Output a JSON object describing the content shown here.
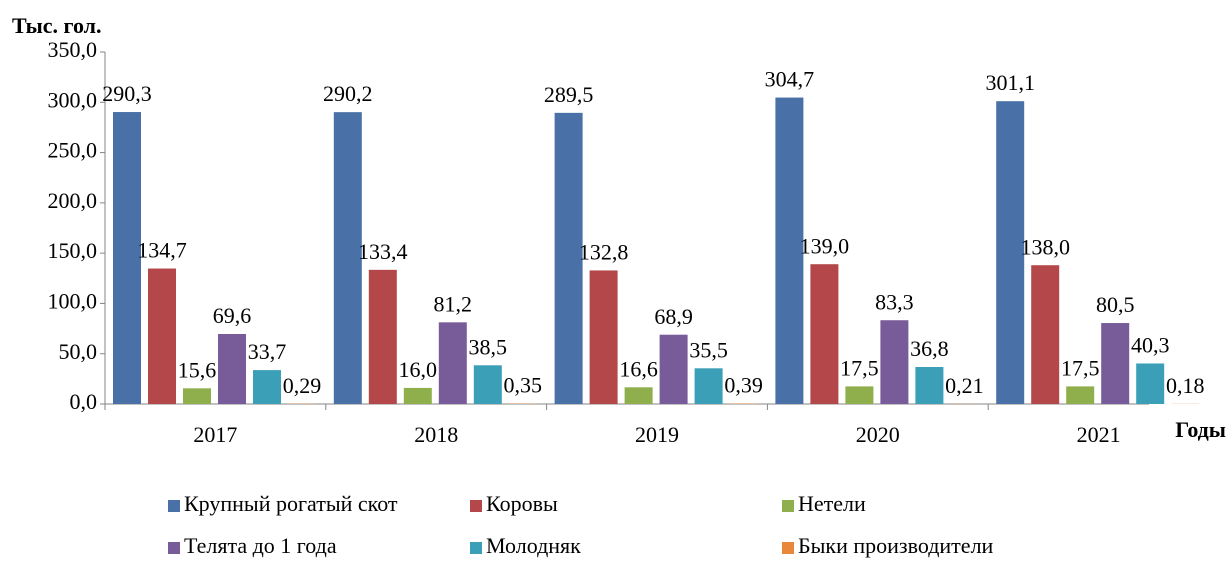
{
  "chart_data": {
    "type": "bar",
    "y_label": "Тыс. гол.",
    "x_label": "Годы",
    "categories": [
      "2017",
      "2018",
      "2019",
      "2020",
      "2021"
    ],
    "ylim": [
      0,
      350
    ],
    "yticks": [
      {
        "value": 0,
        "label": "0,0"
      },
      {
        "value": 50,
        "label": "50,0"
      },
      {
        "value": 100,
        "label": "100,0"
      },
      {
        "value": 150,
        "label": "150,0"
      },
      {
        "value": 200,
        "label": "200,0"
      },
      {
        "value": 250,
        "label": "250,0"
      },
      {
        "value": 300,
        "label": "300,0"
      },
      {
        "value": 350,
        "label": "350,0"
      }
    ],
    "series": [
      {
        "name": "Крупный рогатый скот",
        "color": "#4a70a8",
        "values": [
          290.3,
          290.2,
          289.5,
          304.7,
          301.1
        ],
        "value_labels": [
          "290,3",
          "290,2",
          "289,5",
          "304,7",
          "301,1"
        ]
      },
      {
        "name": "Коровы",
        "color": "#b4474a",
        "values": [
          134.7,
          133.4,
          132.8,
          139.0,
          138.0
        ],
        "value_labels": [
          "134,7",
          "133,4",
          "132,8",
          "139,0",
          "138,0"
        ]
      },
      {
        "name": "Нетели",
        "color": "#8fae4c",
        "values": [
          15.6,
          16.0,
          16.6,
          17.5,
          17.5
        ],
        "value_labels": [
          "15,6",
          "16,0",
          "16,6",
          "17,5",
          "17,5"
        ]
      },
      {
        "name": "Телята до 1 года",
        "color": "#785c9a",
        "values": [
          69.6,
          81.2,
          68.9,
          83.3,
          80.5
        ],
        "value_labels": [
          "69,6",
          "81,2",
          "68,9",
          "83,3",
          "80,5"
        ]
      },
      {
        "name": "Молодняк",
        "color": "#3b9fb8",
        "values": [
          33.7,
          38.5,
          35.5,
          36.8,
          40.3
        ],
        "value_labels": [
          "33,7",
          "38,5",
          "35,5",
          "36,8",
          "40,3"
        ]
      },
      {
        "name": "Быки производители",
        "color": "#e8883a",
        "values": [
          0.29,
          0.35,
          0.39,
          0.21,
          0.18
        ],
        "value_labels": [
          "0,29",
          "0,35",
          "0,39",
          "0,21",
          "0,18"
        ]
      }
    ]
  }
}
